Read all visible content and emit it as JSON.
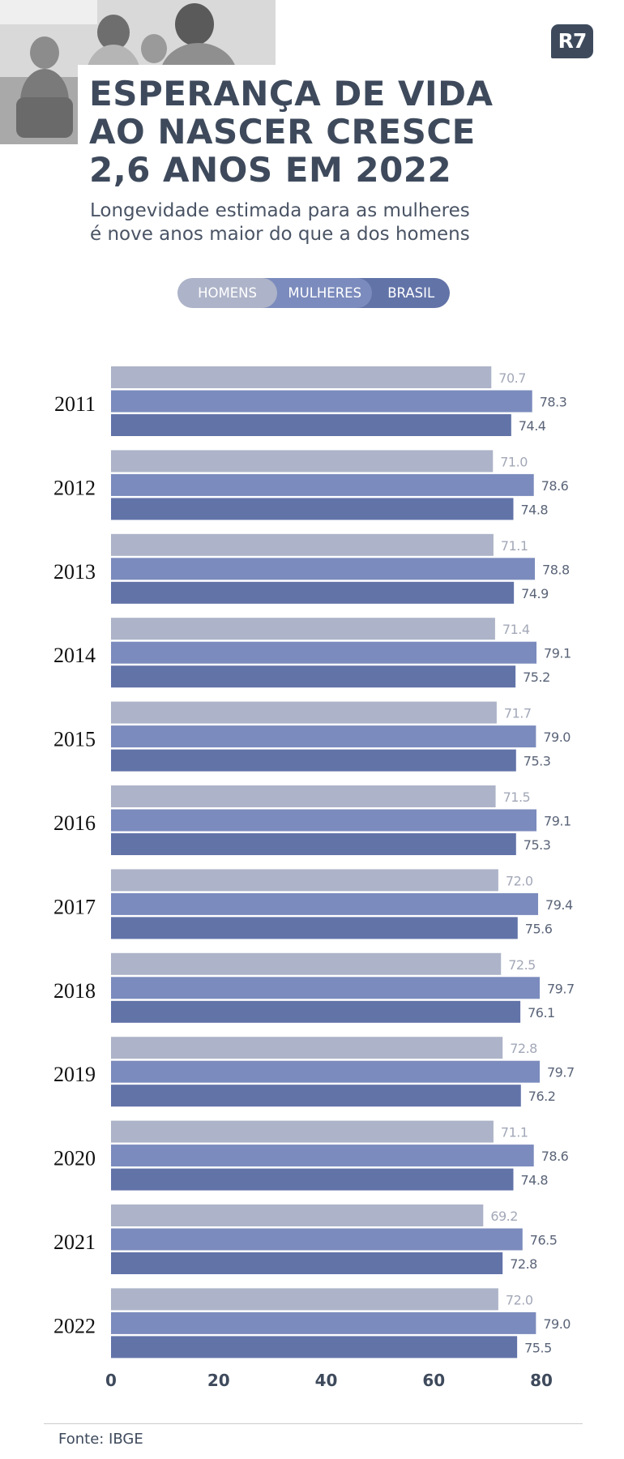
{
  "header": {
    "title_lines": [
      "ESPERANÇA DE VIDA",
      "AO NASCER CRESCE",
      "2,6 ANOS EM 2022"
    ],
    "subtitle_lines": [
      "Longevidade estimada para as mulheres",
      "é nove anos maior do que a dos homens"
    ],
    "logo": "R7"
  },
  "legend": {
    "items": [
      "HOMENS",
      "MULHERES",
      "BRASIL"
    ]
  },
  "footer": {
    "source": "Fonte: IBGE"
  },
  "colors": {
    "homens": "#adb3c8",
    "mulheres": "#7b8bbd",
    "brasil": "#6273a8",
    "text_dark": "#3e4a5c"
  },
  "chart_data": {
    "type": "bar",
    "orientation": "horizontal",
    "categories": [
      "2011",
      "2012",
      "2013",
      "2014",
      "2015",
      "2016",
      "2017",
      "2018",
      "2019",
      "2020",
      "2021",
      "2022"
    ],
    "series": [
      {
        "name": "HOMENS",
        "color": "#adb3c8",
        "values": [
          70.7,
          71.0,
          71.1,
          71.4,
          71.7,
          71.5,
          72.0,
          72.5,
          72.8,
          71.1,
          69.2,
          72.0
        ],
        "labels": [
          "70.7",
          "71.0",
          "71.1",
          "71.4",
          "71.7",
          "71.5",
          "72.0",
          "72.5",
          "72.8",
          "71.1",
          "69.2",
          "72.0"
        ]
      },
      {
        "name": "MULHERES",
        "color": "#7b8bbd",
        "values": [
          78.3,
          78.6,
          78.8,
          79.1,
          79.0,
          79.1,
          79.4,
          79.7,
          79.7,
          78.6,
          76.5,
          79.0
        ],
        "labels": [
          "78.3",
          "78.6",
          "78.8",
          "79.1",
          "79.0",
          "79.1",
          "79.4",
          "79.7",
          "79.7",
          "78.6",
          "76.5",
          "79.0"
        ]
      },
      {
        "name": "BRASIL",
        "color": "#6273a8",
        "values": [
          74.4,
          74.8,
          74.9,
          75.2,
          75.3,
          75.3,
          75.6,
          76.1,
          76.2,
          74.8,
          72.8,
          75.5
        ],
        "labels": [
          "74.4",
          "74.8",
          "74.9",
          "75.2",
          "75.3",
          "75.3",
          "75.6",
          "76.1",
          "76.2",
          "74.8",
          "72.8",
          "75.5"
        ]
      }
    ],
    "x_ticks": [
      "0",
      "20",
      "40",
      "60",
      "80"
    ],
    "xlim": [
      0,
      80
    ],
    "grid": false,
    "legend_position": "top-center"
  }
}
